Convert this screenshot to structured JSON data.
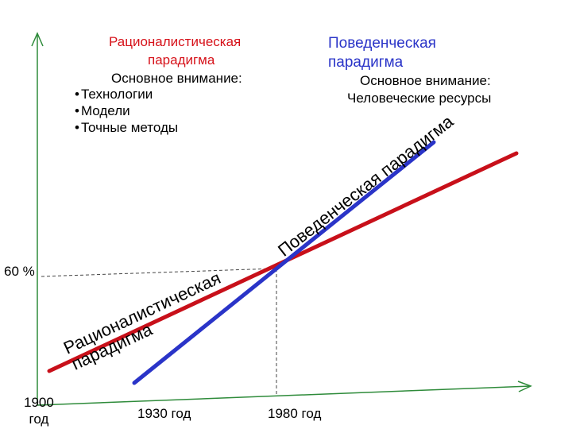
{
  "rational": {
    "title_line1": "Рационалистическая",
    "title_line2": "парадигма",
    "focus_label": "Основное внимание:",
    "bullets": [
      "Технологии",
      "Модели",
      "Точные методы"
    ],
    "line_label_1": "Рационалистическая",
    "line_label_2": "парадигма",
    "color": "#d6121a"
  },
  "behavioral": {
    "title_line1": "Поведенческая",
    "title_line2": "парадигма",
    "focus_label": "Основное внимание:",
    "focus_item": "Человеческие ресурсы",
    "line_label": "Поведенческая парадигма",
    "color": "#2a34c8"
  },
  "axis": {
    "y_marker": "60 %",
    "x_label_1900_line1": "1900",
    "x_label_1900_line2": "год",
    "x_label_1930": "1930 год",
    "x_label_1980": "1980 год",
    "color": "#2e8b3a"
  }
}
